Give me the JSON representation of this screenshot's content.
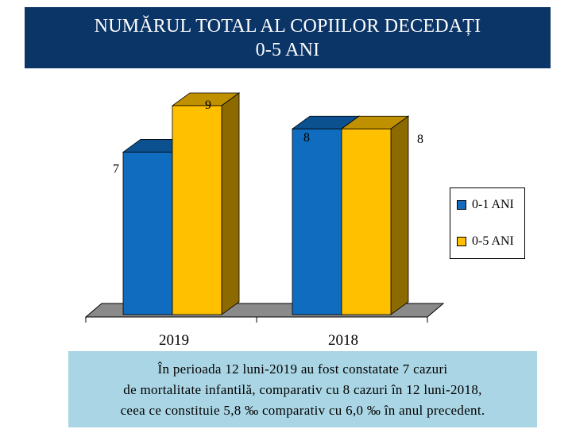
{
  "title": {
    "line1": "NUMĂRUL TOTAL AL COPIILOR DECEDAȚI",
    "line2": "0-5 ANI"
  },
  "chart_data": {
    "type": "bar",
    "style": "3d-clustered",
    "categories": [
      "2019",
      "2018"
    ],
    "series": [
      {
        "name": "0-1 ANI",
        "values": [
          7,
          8
        ],
        "color": "#0f6cbf"
      },
      {
        "name": "0-5 ANI",
        "values": [
          9,
          8
        ],
        "color": "#ffc000"
      }
    ],
    "data_labels": true,
    "ylim": [
      0,
      9
    ],
    "grid": false,
    "legend": "right"
  },
  "note": {
    "line1": "În perioada 12 luni-2019 au fost constatate 7 cazuri",
    "line2": "de mortalitate infantilă, comparativ cu 8 cazuri în 12 luni-2018,",
    "line3": "ceea ce constituie 5,8 ‰ comparativ cu 6,0 ‰ în anul precedent."
  },
  "colors": {
    "title_bg": "#0b3567",
    "note_bg": "#aad5e4"
  }
}
